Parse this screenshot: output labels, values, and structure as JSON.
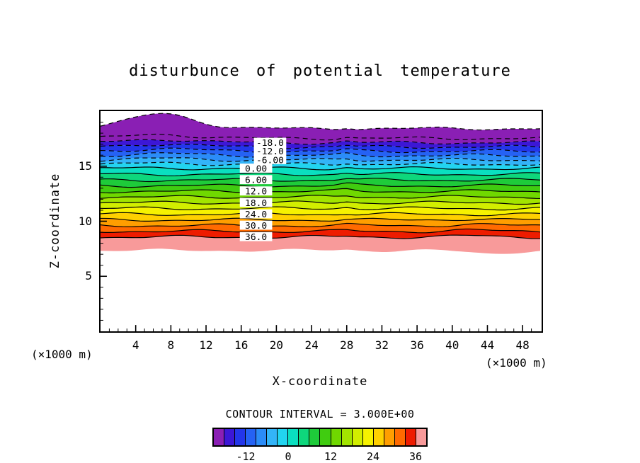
{
  "title": "disturbunce of potential temperature",
  "axes": {
    "x_label": "X-coordinate",
    "y_label": "Z-coordinate",
    "x_unit": "(×1000 m)",
    "x_ticks": [
      4,
      8,
      12,
      16,
      20,
      24,
      28,
      32,
      36,
      40,
      44,
      48
    ],
    "y_ticks": [
      5,
      10,
      15
    ],
    "x_range": [
      0,
      50
    ],
    "z_range": [
      0,
      20
    ]
  },
  "contour_note": "CONTOUR INTERVAL = 3.000E+00",
  "colorbar": {
    "value_min": -21,
    "value_max": 39,
    "tick_labels": [
      {
        "value": -12,
        "text": "-12"
      },
      {
        "value": 0,
        "text": "0"
      },
      {
        "value": 12,
        "text": "12"
      },
      {
        "value": 24,
        "text": "24"
      },
      {
        "value": 36,
        "text": "36"
      }
    ]
  },
  "chart_data": {
    "type": "filled_contour",
    "title": "disturbunce of potential temperature",
    "xlabel": "X-coordinate (×1000 m)",
    "ylabel": "Z-coordinate (×1000 m)",
    "x_range": [
      0,
      50
    ],
    "z_range": [
      0,
      20
    ],
    "contour_interval": 3.0,
    "layer_top_z": 18.42,
    "layer_bottom_z": 7.35,
    "levels": [
      {
        "value": -21,
        "z": 17.53,
        "style": "dashed"
      },
      {
        "value": -18,
        "z": 17.14,
        "style": "dashed"
      },
      {
        "value": -15,
        "z": 16.75,
        "style": "dashed"
      },
      {
        "value": -12,
        "z": 16.36,
        "style": "dashed"
      },
      {
        "value": -9,
        "z": 15.97,
        "style": "dashed"
      },
      {
        "value": -6,
        "z": 15.57,
        "style": "dashed"
      },
      {
        "value": -3,
        "z": 15.18,
        "style": "dashed"
      },
      {
        "value": 0,
        "z": 14.79,
        "style": "solid"
      },
      {
        "value": 3,
        "z": 14.27,
        "style": "solid"
      },
      {
        "value": 6,
        "z": 13.75,
        "style": "solid"
      },
      {
        "value": 9,
        "z": 13.23,
        "style": "solid"
      },
      {
        "value": 12,
        "z": 12.72,
        "style": "solid"
      },
      {
        "value": 15,
        "z": 12.2,
        "style": "solid"
      },
      {
        "value": 18,
        "z": 11.68,
        "style": "solid"
      },
      {
        "value": 21,
        "z": 11.16,
        "style": "solid"
      },
      {
        "value": 24,
        "z": 10.64,
        "style": "solid"
      },
      {
        "value": 27,
        "z": 10.12,
        "style": "solid"
      },
      {
        "value": 30,
        "z": 9.61,
        "style": "solid"
      },
      {
        "value": 33,
        "z": 9.09,
        "style": "solid"
      },
      {
        "value": 36,
        "z": 8.57,
        "style": "solid"
      }
    ],
    "band_colors": [
      "#8a1fb4",
      "#3c17d6",
      "#2336ea",
      "#2562f4",
      "#2b8cf8",
      "#33b4f8",
      "#22d4f0",
      "#0adfc0",
      "#0ed77c",
      "#1ecb3a",
      "#40cc10",
      "#70d800",
      "#a2e400",
      "#d2ee00",
      "#f6f200",
      "#ffd000",
      "#ff9e00",
      "#ff6a00",
      "#ee1c00",
      "#f89a9a"
    ],
    "contour_labels": [
      {
        "value": -18,
        "text": "-18.0"
      },
      {
        "value": -12,
        "text": "-12.0"
      },
      {
        "value": -6,
        "text": "-6.00"
      },
      {
        "value": 0,
        "text": "0.00"
      },
      {
        "value": 6,
        "text": "6.00"
      },
      {
        "value": 12,
        "text": "12.0"
      },
      {
        "value": 18,
        "text": "18.0"
      },
      {
        "value": 24,
        "text": "24.0"
      },
      {
        "value": 30,
        "text": "30.0"
      },
      {
        "value": 36,
        "text": "36.0"
      }
    ]
  }
}
